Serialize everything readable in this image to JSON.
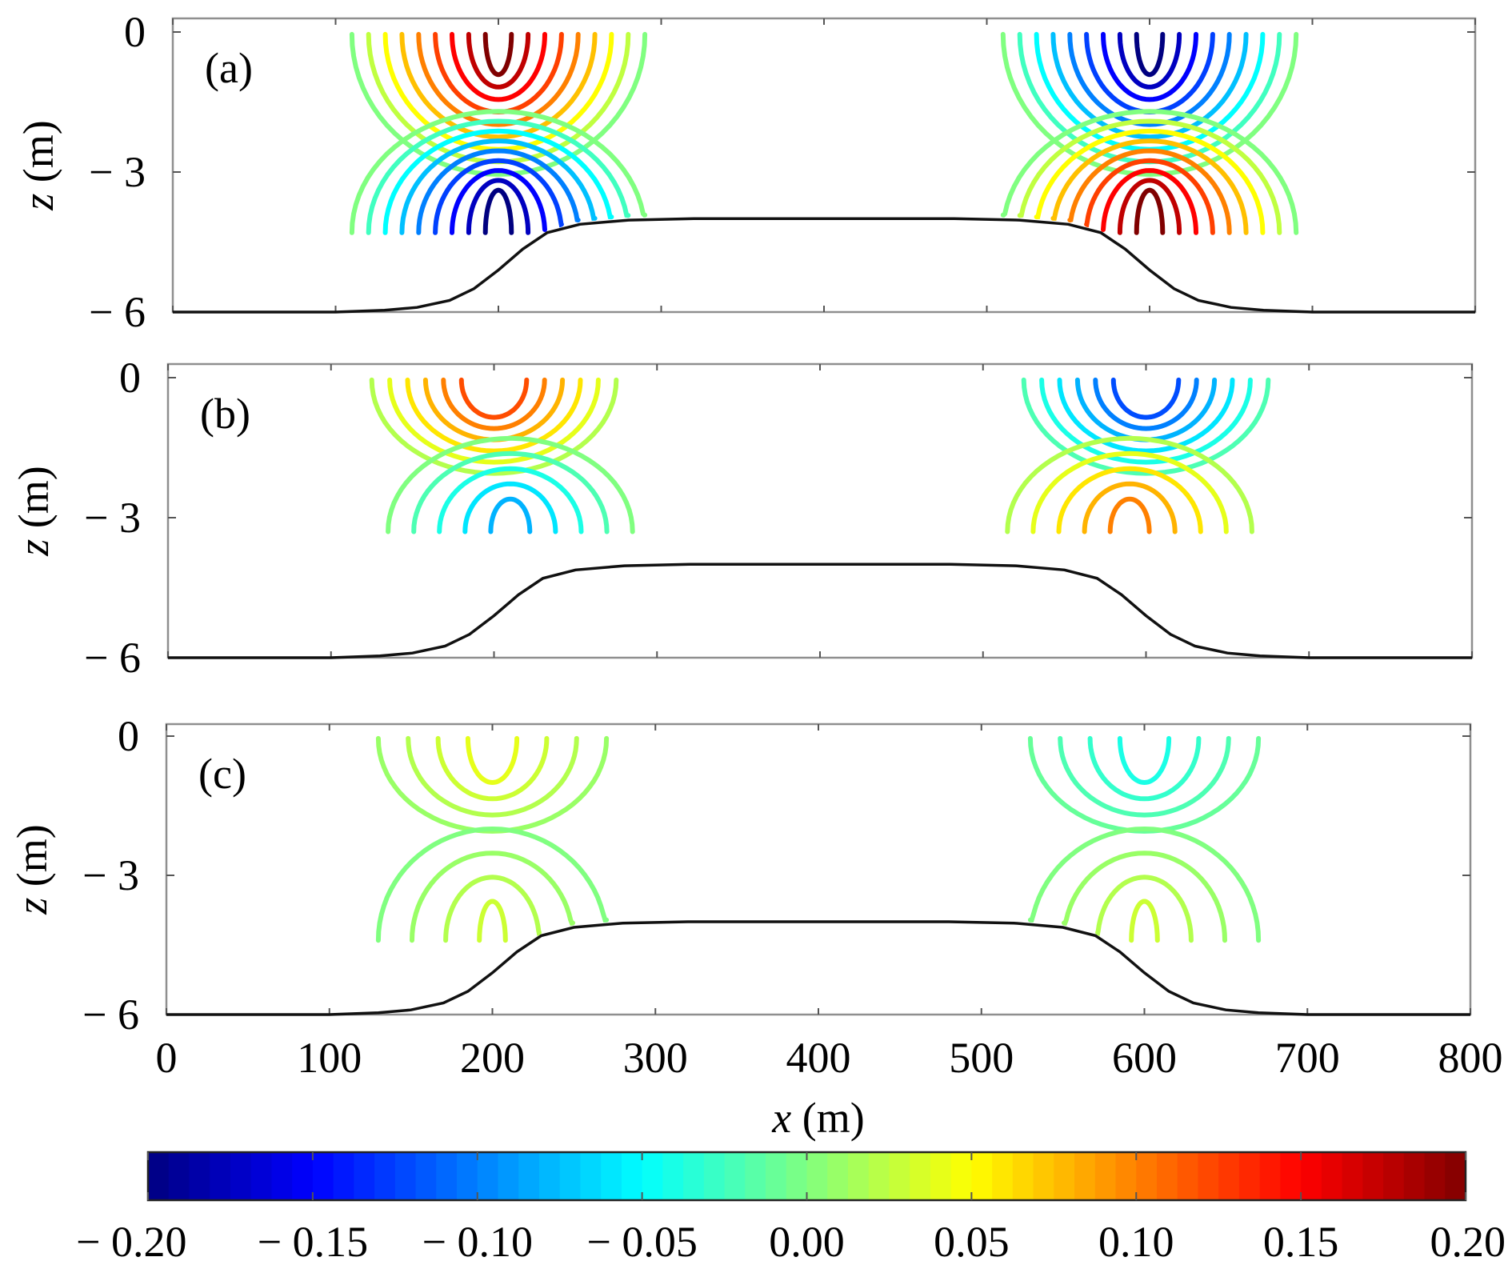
{
  "chart_data": {
    "type": "contour",
    "x_axis": {
      "label_var": "x",
      "label_unit": " (m)",
      "ticks": [
        0,
        100,
        200,
        300,
        400,
        500,
        600,
        700,
        800
      ],
      "tick_labels": [
        "0",
        "100",
        "200",
        "300",
        "400",
        "500",
        "600",
        "700",
        "800"
      ],
      "range": [
        0,
        800
      ]
    },
    "y_axis": {
      "label_var": "z",
      "label_unit": " (m)",
      "ticks": [
        0,
        -3,
        -6
      ],
      "tick_labels": [
        "0",
        "− 3",
        "− 6"
      ],
      "range": [
        -6,
        0
      ]
    },
    "bathymetry": {
      "description": "seabed: flat at z = -6 outside, smooth slopes up to a shoal plateau at z = -4",
      "points": [
        [
          0,
          -6.0
        ],
        [
          100,
          -6.0
        ],
        [
          130,
          -5.96
        ],
        [
          150,
          -5.9
        ],
        [
          170,
          -5.75
        ],
        [
          185,
          -5.5
        ],
        [
          200,
          -5.1
        ],
        [
          215,
          -4.65
        ],
        [
          230,
          -4.3
        ],
        [
          250,
          -4.12
        ],
        [
          280,
          -4.03
        ],
        [
          320,
          -4.0
        ],
        [
          480,
          -4.0
        ],
        [
          520,
          -4.03
        ],
        [
          550,
          -4.12
        ],
        [
          570,
          -4.3
        ],
        [
          585,
          -4.65
        ],
        [
          600,
          -5.1
        ],
        [
          615,
          -5.5
        ],
        [
          630,
          -5.75
        ],
        [
          650,
          -5.9
        ],
        [
          670,
          -5.96
        ],
        [
          700,
          -6.0
        ],
        [
          800,
          -6.0
        ]
      ]
    },
    "panels": [
      {
        "label": "(a)",
        "groups": [
          {
            "cx": 200,
            "dir": "top",
            "peak": 0.2,
            "count": 9,
            "step": 0.025,
            "zcore": 0.15,
            "zbase": 3.0,
            "xcore": 8,
            "xspread": 90
          },
          {
            "cx": 200,
            "dir": "bottom",
            "peak": -0.2,
            "count": 9,
            "step": 0.025,
            "zcore": 4.3,
            "zbase": 2.6,
            "xcore": 8,
            "xspread": 90,
            "xbase": 5.6
          },
          {
            "cx": 600,
            "dir": "top",
            "peak": -0.2,
            "count": 9,
            "step": 0.025,
            "zcore": 0.15,
            "zbase": 3.0,
            "xcore": 8,
            "xspread": 90
          },
          {
            "cx": 600,
            "dir": "bottom",
            "peak": 0.2,
            "count": 9,
            "step": 0.025,
            "zcore": 4.3,
            "zbase": 2.6,
            "xcore": 8,
            "xspread": 90,
            "xbase": 5.6
          }
        ]
      },
      {
        "label": "(b)",
        "groups": [
          {
            "cx": 200,
            "dir": "top",
            "peak": 0.12,
            "count": 6,
            "step": 0.02,
            "zcore": 0.4,
            "zbase": 2.0,
            "xcore": 20,
            "xspread": 75
          },
          {
            "cx": 210,
            "dir": "bottom",
            "peak": -0.08,
            "count": 5,
            "step": 0.02,
            "zcore": 3.3,
            "zbase": 2.0,
            "xcore": 12,
            "xspread": 75,
            "xbase": 5.6
          },
          {
            "cx": 600,
            "dir": "top",
            "peak": -0.12,
            "count": 6,
            "step": 0.02,
            "zcore": 0.4,
            "zbase": 2.0,
            "xcore": 20,
            "xspread": 75
          },
          {
            "cx": 590,
            "dir": "bottom",
            "peak": 0.1,
            "count": 5,
            "step": 0.02,
            "zcore": 3.3,
            "zbase": 2.0,
            "xcore": 12,
            "xspread": 75,
            "xbase": 5.6
          }
        ]
      },
      {
        "label": "(c)",
        "groups": [
          {
            "cx": 200,
            "dir": "top",
            "peak": 0.04,
            "count": 4,
            "step": 0.01,
            "zcore": 0.6,
            "zbase": 2.0,
            "xcore": 15,
            "xspread": 70
          },
          {
            "cx": 200,
            "dir": "bottom",
            "peak": 0.03,
            "count": 4,
            "step": 0.01,
            "zcore": 4.4,
            "zbase": 2.4,
            "xcore": 8,
            "xspread": 70,
            "xbase": 5.6
          },
          {
            "cx": 600,
            "dir": "top",
            "peak": -0.04,
            "count": 4,
            "step": 0.01,
            "zcore": 0.6,
            "zbase": 2.0,
            "xcore": 15,
            "xspread": 70
          },
          {
            "cx": 600,
            "dir": "bottom",
            "peak": 0.03,
            "count": 4,
            "step": 0.01,
            "zcore": 4.4,
            "zbase": 2.4,
            "xcore": 8,
            "xspread": 70,
            "xbase": 5.6
          }
        ]
      }
    ],
    "colorbar": {
      "range": [
        -0.2,
        0.2
      ],
      "ticks": [
        -0.2,
        -0.15,
        -0.1,
        -0.05,
        0.0,
        0.05,
        0.1,
        0.15,
        0.2
      ],
      "tick_labels": [
        "− 0.20",
        "− 0.15",
        "− 0.10",
        "− 0.05",
        "0.00",
        "0.05",
        "0.10",
        "0.15",
        "0.20"
      ],
      "colormap": "jet",
      "colors": [
        "#000080",
        "#0000ff",
        "#0080ff",
        "#00ffff",
        "#80ff80",
        "#ffff00",
        "#ff8000",
        "#ff0000",
        "#800000"
      ]
    },
    "grid": false,
    "legend": "none"
  }
}
